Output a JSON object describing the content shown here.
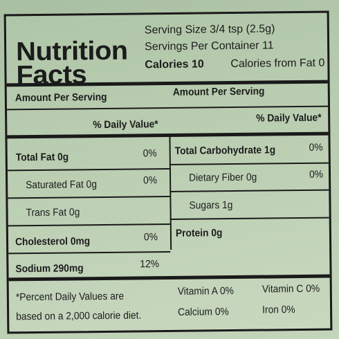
{
  "title_line1": "Nutrition",
  "title_line2": "Facts",
  "serving_size": "Serving Size 3/4 tsp  (2.5g)",
  "servings_per_container": "Servings Per Container 11",
  "calories": "Calories 10",
  "calories_from_fat": "Calories from Fat 0",
  "amount_per_serving_left": "Amount Per Serving",
  "amount_per_serving_right": "Amount Per Serving",
  "daily_value_left": "% Daily Value*",
  "daily_value_right": "% Daily Value*",
  "rows_left": [
    {
      "label": "Total Fat 0g",
      "dv": "0%"
    },
    {
      "label": "Saturated Fat 0g",
      "dv": "0%"
    },
    {
      "label": "Trans Fat 0g",
      "dv": ""
    },
    {
      "label": "Cholesterol 0mg",
      "dv": "0%"
    },
    {
      "label": "Sodium 290mg",
      "dv": "12%"
    }
  ],
  "rows_right": [
    {
      "label": "Total Carbohydrate 1g",
      "dv": "0%"
    },
    {
      "label": "Dietary Fiber 0g",
      "dv": "0%"
    },
    {
      "label": "Sugars 1g",
      "dv": ""
    },
    {
      "label": "Protein 0g",
      "dv": ""
    }
  ],
  "footnote_line1": "*Percent Daily Values are",
  "footnote_line2": "based on a 2,000 calorie diet.",
  "vitamin_a": "Vitamin A 0%",
  "vitamin_c": "Vitamin C 0%",
  "calcium": "Calcium 0%",
  "iron": "Iron 0%"
}
